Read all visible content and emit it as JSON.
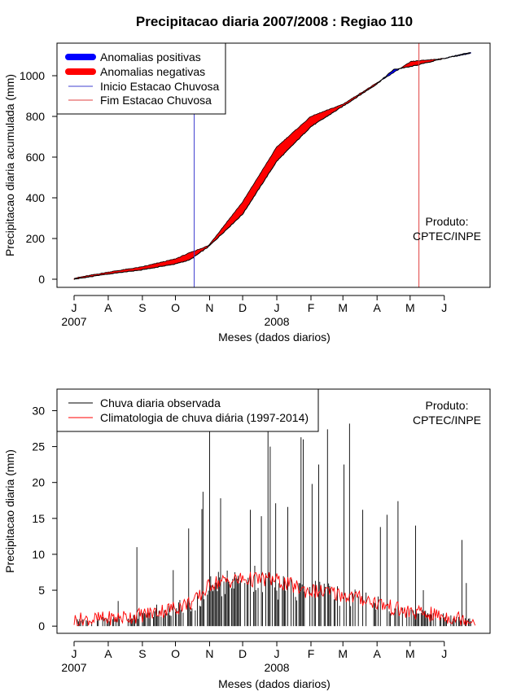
{
  "title": "Precipitacao diaria 2007/2008 : Regiao 110",
  "colors": {
    "positive": "#0000ff",
    "negative": "#ff0000",
    "onset": "#4040d0",
    "end": "#e04040",
    "observed": "#000000",
    "climatology": "#ff0000"
  },
  "chart_data": [
    {
      "type": "area",
      "ylabel": "Precipitacao diaria acumulada (mm)",
      "xlabel": "Meses (dados diarios)",
      "ylim": [
        -40,
        1160
      ],
      "yticks": [
        0,
        200,
        400,
        600,
        800,
        1000
      ],
      "months": [
        "J",
        "A",
        "S",
        "O",
        "N",
        "D",
        "J",
        "F",
        "M",
        "A",
        "M",
        "J"
      ],
      "years": [
        {
          "label": "2007",
          "month_index": 0
        },
        {
          "label": "2008",
          "month_index": 6
        }
      ],
      "legend": [
        {
          "label": "Anomalias positivas",
          "style": "thick",
          "color": "positive"
        },
        {
          "label": "Anomalias negativas",
          "style": "thick",
          "color": "negative"
        },
        {
          "label": "Inicio Estacao Chuvosa",
          "style": "thin",
          "color": "onset"
        },
        {
          "label": "Fim Estacao Chuvosa",
          "style": "thin",
          "color": "end"
        }
      ],
      "onset_day": 109,
      "end_day": 313,
      "product_label": [
        "Produto:",
        "CPTEC/INPE"
      ],
      "day_points": [
        0,
        31,
        61,
        92,
        105,
        122,
        153,
        184,
        215,
        244,
        275,
        290,
        306,
        336,
        360
      ],
      "observed_accum": [
        0,
        25,
        45,
        75,
        95,
        160,
        320,
        580,
        750,
        850,
        960,
        1030,
        1045,
        1085,
        1115
      ],
      "climatology_accum": [
        5,
        35,
        60,
        100,
        130,
        165,
        380,
        650,
        800,
        860,
        965,
        1015,
        1070,
        1085,
        1110
      ]
    },
    {
      "type": "bar",
      "ylabel": "Precipitacao diaria (mm)",
      "xlabel": "Meses (dados diarios)",
      "ylim": [
        -1,
        33
      ],
      "yticks": [
        0,
        5,
        10,
        15,
        20,
        25,
        30
      ],
      "months": [
        "J",
        "A",
        "S",
        "O",
        "N",
        "D",
        "J",
        "F",
        "M",
        "A",
        "M",
        "J"
      ],
      "years": [
        {
          "label": "2007",
          "month_index": 0
        },
        {
          "label": "2008",
          "month_index": 6
        }
      ],
      "legend": [
        {
          "label": "Chuva diaria observada",
          "color": "observed"
        },
        {
          "label": "Climatologia de chuva diária (1997-2014)",
          "color": "climatology"
        }
      ],
      "product_label": [
        "Produto:",
        "CPTEC/INPE"
      ],
      "observed_daily_peaks": [
        {
          "day": 40,
          "value": 3.5
        },
        {
          "day": 57,
          "value": 11
        },
        {
          "day": 75,
          "value": 3
        },
        {
          "day": 90,
          "value": 7.8
        },
        {
          "day": 104,
          "value": 13.6
        },
        {
          "day": 116,
          "value": 16.3
        },
        {
          "day": 117,
          "value": 18.7
        },
        {
          "day": 123,
          "value": 28
        },
        {
          "day": 133,
          "value": 17.8
        },
        {
          "day": 150,
          "value": 6
        },
        {
          "day": 160,
          "value": 16.2
        },
        {
          "day": 170,
          "value": 15.3
        },
        {
          "day": 176,
          "value": 28
        },
        {
          "day": 178,
          "value": 25
        },
        {
          "day": 183,
          "value": 17.1
        },
        {
          "day": 194,
          "value": 16.6
        },
        {
          "day": 206,
          "value": 26.3
        },
        {
          "day": 208,
          "value": 26
        },
        {
          "day": 216,
          "value": 19.8
        },
        {
          "day": 222,
          "value": 22.5
        },
        {
          "day": 230,
          "value": 27.4
        },
        {
          "day": 237,
          "value": 4
        },
        {
          "day": 245,
          "value": 22.5
        },
        {
          "day": 250,
          "value": 28.2
        },
        {
          "day": 262,
          "value": 16.2
        },
        {
          "day": 278,
          "value": 13.8
        },
        {
          "day": 284,
          "value": 15.5
        },
        {
          "day": 294,
          "value": 17.4
        },
        {
          "day": 310,
          "value": 14
        },
        {
          "day": 317,
          "value": 5
        },
        {
          "day": 352,
          "value": 12
        },
        {
          "day": 356,
          "value": 6
        }
      ],
      "climatology_daily": [
        {
          "day": 0,
          "value": 0.8
        },
        {
          "day": 30,
          "value": 1.0
        },
        {
          "day": 60,
          "value": 1.5
        },
        {
          "day": 90,
          "value": 2.5
        },
        {
          "day": 110,
          "value": 3.5
        },
        {
          "day": 125,
          "value": 6.0
        },
        {
          "day": 150,
          "value": 6.5
        },
        {
          "day": 180,
          "value": 6.5
        },
        {
          "day": 210,
          "value": 5.0
        },
        {
          "day": 240,
          "value": 4.5
        },
        {
          "day": 270,
          "value": 3.5
        },
        {
          "day": 300,
          "value": 2.0
        },
        {
          "day": 330,
          "value": 1.5
        },
        {
          "day": 364,
          "value": 0.8
        }
      ]
    }
  ]
}
